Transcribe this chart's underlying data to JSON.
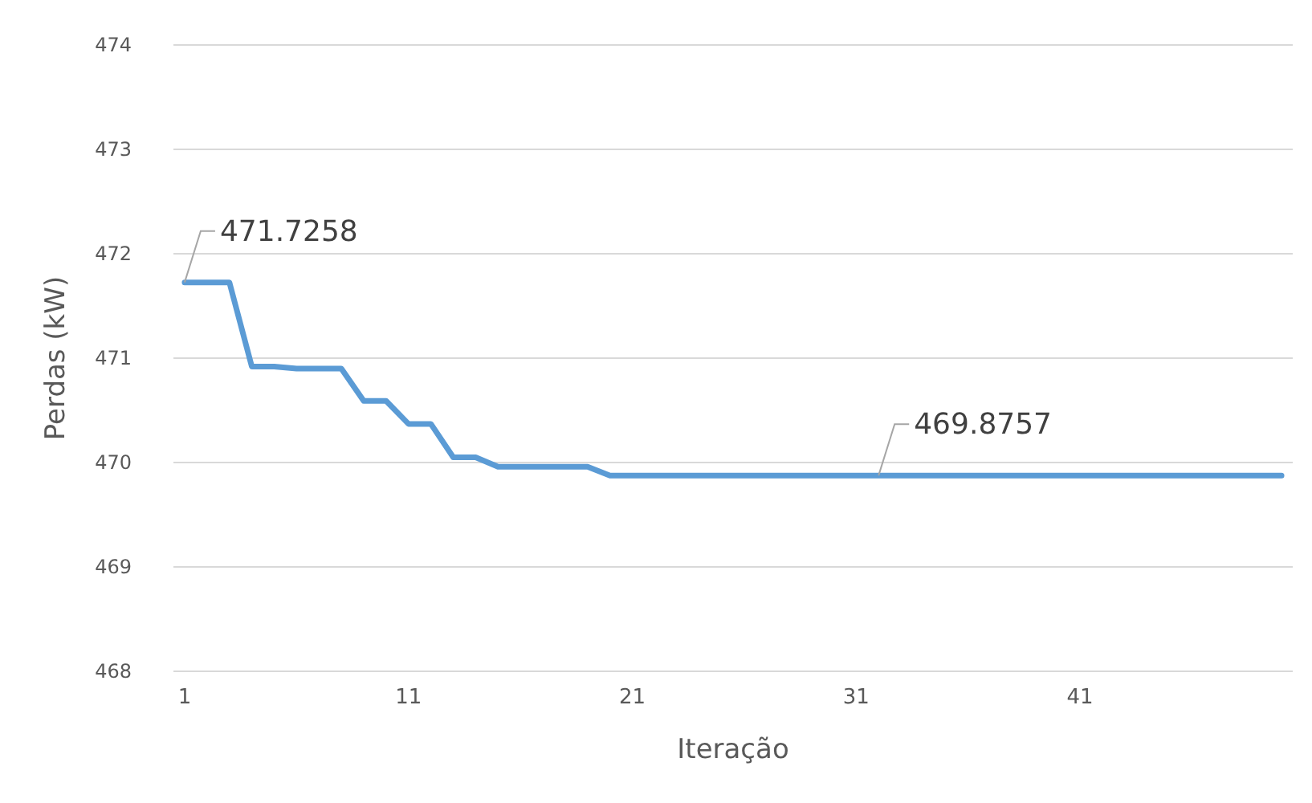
{
  "chart_data": {
    "type": "line",
    "xlabel": "Iteração",
    "ylabel": "Perdas (kW)",
    "x": [
      1,
      2,
      3,
      4,
      5,
      6,
      7,
      8,
      9,
      10,
      11,
      12,
      13,
      14,
      15,
      16,
      17,
      18,
      19,
      20,
      21,
      22,
      23,
      24,
      25,
      26,
      27,
      28,
      29,
      30,
      31,
      32,
      33,
      34,
      35,
      36,
      37,
      38,
      39,
      40,
      41,
      42,
      43,
      44,
      45,
      46,
      47,
      48,
      49,
      50
    ],
    "series": [
      {
        "color": "#5b9bd5",
        "values": [
          471.7258,
          471.7258,
          471.7258,
          470.92,
          470.92,
          470.9,
          470.9,
          470.9,
          470.59,
          470.59,
          470.37,
          470.37,
          470.05,
          470.05,
          469.96,
          469.96,
          469.96,
          469.96,
          469.96,
          469.8757,
          469.8757,
          469.8757,
          469.8757,
          469.8757,
          469.8757,
          469.8757,
          469.8757,
          469.8757,
          469.8757,
          469.8757,
          469.8757,
          469.8757,
          469.8757,
          469.8757,
          469.8757,
          469.8757,
          469.8757,
          469.8757,
          469.8757,
          469.8757,
          469.8757,
          469.8757,
          469.8757,
          469.8757,
          469.8757,
          469.8757,
          469.8757,
          469.8757,
          469.8757,
          469.8757
        ],
        "value_labels": [
          "471.7258",
          null,
          null,
          null,
          null,
          null,
          null,
          null,
          null,
          null,
          null,
          null,
          null,
          null,
          null,
          null,
          null,
          null,
          null,
          null,
          null,
          null,
          null,
          null,
          null,
          null,
          null,
          null,
          null,
          null,
          null,
          "469.8757",
          null,
          null,
          null,
          null,
          null,
          null,
          null,
          null,
          null,
          null,
          null,
          null,
          null,
          null,
          null,
          null,
          null,
          null
        ]
      }
    ],
    "xlim": [
      0.5,
      50.5
    ],
    "xticks": [
      1,
      11,
      21,
      31,
      41
    ],
    "ylim": [
      468,
      474
    ],
    "yticks": [
      468,
      469,
      470,
      471,
      472,
      473,
      474
    ],
    "grid": "y",
    "marker": "none",
    "line_style": "solid"
  }
}
